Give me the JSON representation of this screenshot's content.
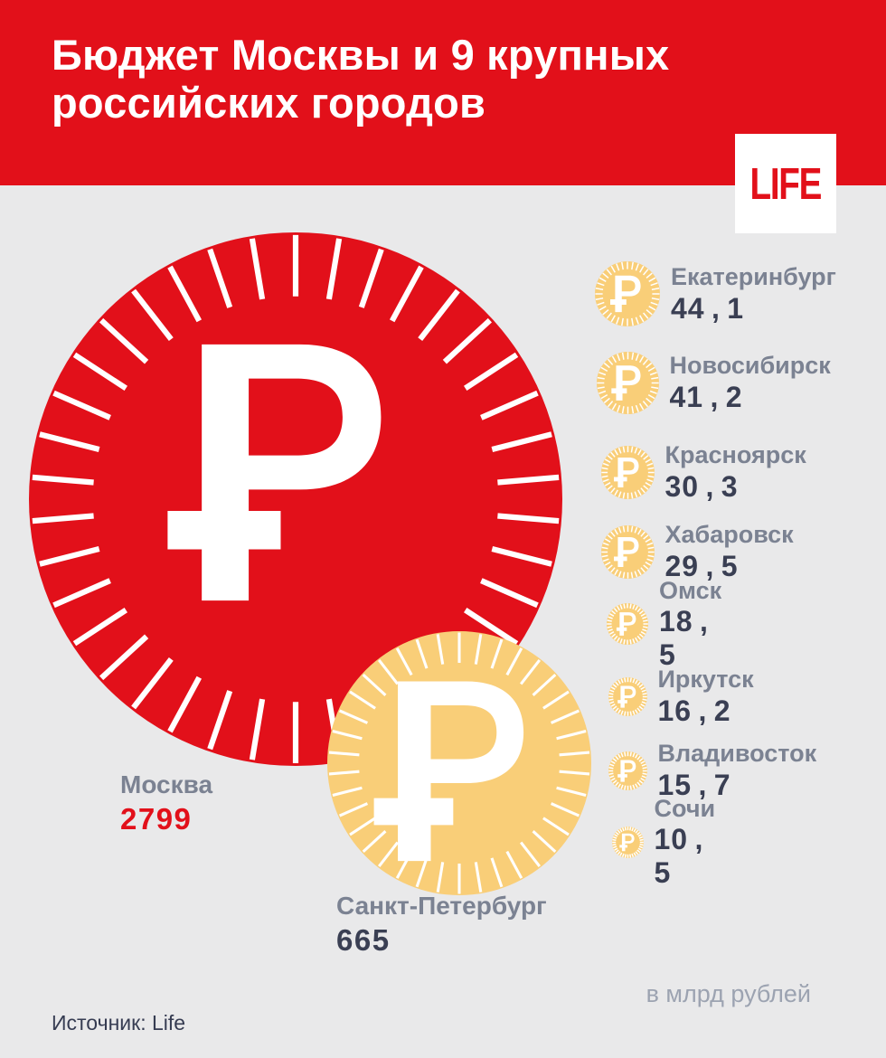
{
  "header": {
    "title_line1": "Бюджет Москвы и 9 крупных",
    "title_line2": "российских городов",
    "logo": "LIFE"
  },
  "footer": {
    "unit_note": "в млрд рублей",
    "source": "Источник: Life"
  },
  "colors": {
    "red": "#e2101a",
    "gold": "#f9ce78",
    "background": "#e9e9ea",
    "white": "#ffffff",
    "name_gray": "#7b8292",
    "value_navy": "#3a3f53",
    "note_gray": "#9ca3b1",
    "source_navy": "#363c52"
  },
  "chart_data": {
    "type": "proportional-circles",
    "title": "Бюджет Москвы и 9 крупных российских городов",
    "unit": "в млрд рублей",
    "source": "Life",
    "legend_position": "none",
    "items": [
      {
        "city": "Москва",
        "value": 2799,
        "value_label": "2799",
        "coin_color": "#e2101a",
        "value_color": "#e2101a"
      },
      {
        "city": "Санкт-Петербург",
        "value": 665,
        "value_label": "665",
        "coin_color": "#f9ce78",
        "value_color": "#3a3f53"
      },
      {
        "city": "Екатеринбург",
        "value": 44.1,
        "value_label": "44,1",
        "coin_color": "#f9ce78",
        "value_color": "#3a3f53"
      },
      {
        "city": "Новосибирск",
        "value": 41.2,
        "value_label": "41,2",
        "coin_color": "#f9ce78",
        "value_color": "#3a3f53"
      },
      {
        "city": "Красноярск",
        "value": 30.3,
        "value_label": "30,3",
        "coin_color": "#f9ce78",
        "value_color": "#3a3f53"
      },
      {
        "city": "Хабаровск",
        "value": 29.5,
        "value_label": "29,5",
        "coin_color": "#f9ce78",
        "value_color": "#3a3f53"
      },
      {
        "city": "Омск",
        "value": 18.5,
        "value_label": "18,5",
        "coin_color": "#f9ce78",
        "value_color": "#3a3f53"
      },
      {
        "city": "Иркутск",
        "value": 16.2,
        "value_label": "16,2",
        "coin_color": "#f9ce78",
        "value_color": "#3a3f53"
      },
      {
        "city": "Владивосток",
        "value": 15.7,
        "value_label": "15,7",
        "coin_color": "#f9ce78",
        "value_color": "#3a3f53"
      },
      {
        "city": "Сочи",
        "value": 10.5,
        "value_label": "10,5",
        "coin_color": "#f9ce78",
        "value_color": "#3a3f53"
      }
    ]
  }
}
